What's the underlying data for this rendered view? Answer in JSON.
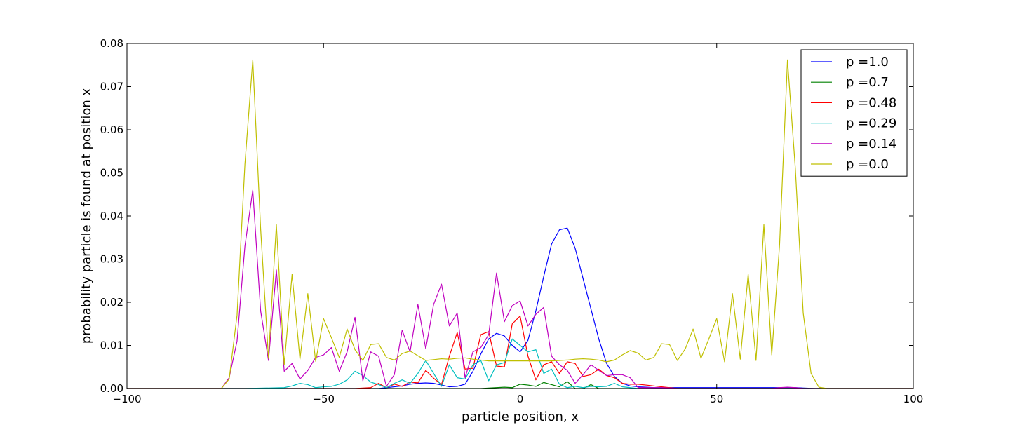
{
  "chart_data": {
    "type": "line",
    "title": "",
    "xlabel": "particle position, x",
    "ylabel": "probability particle is found at position x",
    "xlim": [
      -100,
      100
    ],
    "ylim": [
      0,
      0.08
    ],
    "xticks": [
      -100,
      -50,
      0,
      50,
      100
    ],
    "xtick_labels": [
      "−100",
      "−50",
      "0",
      "50",
      "100"
    ],
    "yticks": [
      0,
      0.01,
      0.02,
      0.03,
      0.04,
      0.05,
      0.06,
      0.07,
      0.08
    ],
    "ytick_labels": [
      "0.00",
      "0.01",
      "0.02",
      "0.03",
      "0.04",
      "0.05",
      "0.06",
      "0.07",
      "0.08"
    ],
    "grid": false,
    "legend_position": "top-right",
    "series": [
      {
        "name": "p =1.0",
        "color": "#0000ff",
        "x": [
          -100,
          -40,
          -36,
          -34,
          -32,
          -30,
          -28,
          -26,
          -24,
          -22,
          -20,
          -18,
          -16,
          -14,
          -12,
          -10,
          -8,
          -6,
          -4,
          -2,
          0,
          2,
          4,
          6,
          8,
          10,
          12,
          14,
          16,
          18,
          20,
          22,
          24,
          26,
          28,
          30,
          32,
          34,
          36,
          38,
          40,
          45,
          50,
          55,
          60,
          65,
          70,
          75,
          80,
          100
        ],
        "y": [
          0,
          0,
          0,
          0.0002,
          0.0004,
          0.0006,
          0.001,
          0.0012,
          0.0013,
          0.0012,
          0.0008,
          0.0004,
          0.0005,
          0.001,
          0.004,
          0.008,
          0.0115,
          0.0128,
          0.0122,
          0.01,
          0.0085,
          0.0112,
          0.018,
          0.026,
          0.0335,
          0.0368,
          0.0372,
          0.0325,
          0.0255,
          0.0185,
          0.0115,
          0.0058,
          0.0028,
          0.0012,
          0.0006,
          0.0004,
          0.0003,
          0.0002,
          0.0002,
          0.0002,
          0.0002,
          0.0002,
          0.0002,
          0.0002,
          0.0002,
          0.0002,
          0.0002,
          0,
          0,
          0
        ]
      },
      {
        "name": "p =0.7",
        "color": "#008000",
        "x": [
          -100,
          -30,
          -20,
          -10,
          -4,
          -2,
          0,
          2,
          4,
          6,
          8,
          10,
          12,
          14,
          16,
          18,
          20,
          22,
          24,
          30,
          100
        ],
        "y": [
          0,
          0,
          0,
          0,
          0.0003,
          0.0002,
          0.001,
          0.0008,
          0.0005,
          0.0014,
          0.0009,
          0.0004,
          0.0016,
          0,
          0,
          0.0009,
          0,
          0,
          0,
          0,
          0
        ]
      },
      {
        "name": "p =0.48",
        "color": "#ff0000",
        "x": [
          -100,
          -42,
          -38,
          -36,
          -34,
          -32,
          -30,
          -28,
          -26,
          -24,
          -22,
          -20,
          -18,
          -16,
          -14,
          -12,
          -10,
          -8,
          -6,
          -4,
          -2,
          0,
          2,
          4,
          6,
          8,
          10,
          12,
          14,
          16,
          18,
          20,
          22,
          24,
          26,
          28,
          30,
          32,
          34,
          36,
          40,
          100
        ],
        "y": [
          0,
          0,
          0.0002,
          0.0012,
          0.0002,
          0.001,
          0.0005,
          0.0015,
          0.0013,
          0.0042,
          0.0024,
          0.0009,
          0.0075,
          0.013,
          0.0045,
          0.0047,
          0.0125,
          0.0132,
          0.0052,
          0.005,
          0.015,
          0.0168,
          0.0075,
          0.002,
          0.0055,
          0.0062,
          0.0035,
          0.0062,
          0.0058,
          0.0028,
          0.0032,
          0.0045,
          0.003,
          0.0025,
          0.0012,
          0.001,
          0.001,
          0.0008,
          0.0006,
          0.0004,
          0,
          0
        ]
      },
      {
        "name": "p =0.29",
        "color": "#00bfbf",
        "x": [
          -100,
          -70,
          -60,
          -58,
          -56,
          -54,
          -52,
          -50,
          -48,
          -46,
          -44,
          -42,
          -40,
          -38,
          -36,
          -34,
          -32,
          -30,
          -28,
          -26,
          -24,
          -22,
          -20,
          -18,
          -16,
          -14,
          -12,
          -10,
          -8,
          -6,
          -4,
          -2,
          0,
          2,
          4,
          6,
          8,
          10,
          12,
          14,
          16,
          18,
          20,
          22,
          24,
          26,
          28,
          30,
          40,
          100
        ],
        "y": [
          0,
          0,
          0.0002,
          0.0006,
          0.0012,
          0.0009,
          0.0002,
          0.0004,
          0.0005,
          0.001,
          0.002,
          0.004,
          0.003,
          0.0015,
          0.0009,
          0.0002,
          0.0012,
          0.002,
          0.0012,
          0.0035,
          0.0065,
          0.0035,
          0.0005,
          0.0055,
          0.0025,
          0.0022,
          0.0055,
          0.0065,
          0.0018,
          0.0055,
          0.006,
          0.0115,
          0.01,
          0.0085,
          0.009,
          0.0035,
          0.0045,
          0.001,
          0.0002,
          0.0005,
          0.0002,
          0.0005,
          0.0004,
          0.0005,
          0.0012,
          0.0004,
          0.0002,
          0,
          0,
          0
        ]
      },
      {
        "name": "p =0.14",
        "color": "#bf00bf",
        "x": [
          -100,
          -76,
          -74,
          -72,
          -70,
          -68,
          -66,
          -64,
          -62,
          -60,
          -58,
          -56,
          -54,
          -52,
          -50,
          -48,
          -46,
          -44,
          -42,
          -40,
          -38,
          -36,
          -34,
          -32,
          -30,
          -28,
          -26,
          -24,
          -22,
          -20,
          -18,
          -16,
          -14,
          -12,
          -10,
          -8,
          -6,
          -4,
          -2,
          0,
          2,
          4,
          6,
          8,
          10,
          12,
          14,
          16,
          18,
          20,
          22,
          24,
          26,
          28,
          30,
          32,
          34,
          36,
          40,
          50,
          60,
          64,
          66,
          68,
          70,
          72,
          100
        ],
        "y": [
          0,
          0,
          0.0025,
          0.011,
          0.033,
          0.046,
          0.018,
          0.0065,
          0.0275,
          0.004,
          0.0058,
          0.0022,
          0.0042,
          0.0072,
          0.0078,
          0.0095,
          0.004,
          0.0085,
          0.0165,
          0.0018,
          0.0085,
          0.0075,
          0.0005,
          0.0032,
          0.0135,
          0.0085,
          0.0195,
          0.0092,
          0.0195,
          0.0242,
          0.0145,
          0.0175,
          0.0025,
          0.0085,
          0.0095,
          0.0125,
          0.0268,
          0.0155,
          0.0192,
          0.0203,
          0.0145,
          0.0172,
          0.0188,
          0.0075,
          0.0055,
          0.0042,
          0.0012,
          0.0032,
          0.0055,
          0.0042,
          0.003,
          0.0032,
          0.0032,
          0.0025,
          0.0002,
          0.0002,
          0.0002,
          0.0002,
          0,
          0,
          0,
          0,
          0.0002,
          0.0003,
          0.0002,
          0,
          0
        ]
      },
      {
        "name": "p =0.0",
        "color": "#bfbf00",
        "x": [
          -100,
          -76,
          -74,
          -72,
          -70,
          -68,
          -66,
          -64,
          -62,
          -60,
          -58,
          -56,
          -54,
          -52,
          -50,
          -48,
          -46,
          -44,
          -42,
          -40,
          -38,
          -36,
          -34,
          -32,
          -30,
          -28,
          -26,
          -24,
          -22,
          -20,
          -18,
          -16,
          -14,
          -12,
          -10,
          -8,
          -6,
          -4,
          -2,
          0,
          2,
          4,
          6,
          8,
          10,
          12,
          14,
          16,
          18,
          20,
          22,
          24,
          26,
          28,
          30,
          32,
          34,
          36,
          38,
          40,
          42,
          44,
          46,
          48,
          50,
          52,
          54,
          56,
          58,
          60,
          62,
          64,
          66,
          68,
          70,
          72,
          74,
          76,
          78,
          100
        ],
        "y": [
          0,
          0,
          0.0022,
          0.017,
          0.052,
          0.0762,
          0.037,
          0.007,
          0.038,
          0.0055,
          0.0265,
          0.0068,
          0.022,
          0.0063,
          0.0162,
          0.0118,
          0.0072,
          0.0138,
          0.009,
          0.0065,
          0.0102,
          0.0104,
          0.0072,
          0.0066,
          0.0081,
          0.0087,
          0.0076,
          0.0065,
          0.0067,
          0.0069,
          0.0068,
          0.007,
          0.0071,
          0.0068,
          0.0066,
          0.0064,
          0.0064,
          0.0064,
          0.0064,
          0.0064,
          0.0064,
          0.0064,
          0.0064,
          0.0064,
          0.0065,
          0.0066,
          0.0068,
          0.0069,
          0.0068,
          0.0066,
          0.0062,
          0.0066,
          0.0078,
          0.0088,
          0.0082,
          0.0066,
          0.0072,
          0.0104,
          0.0102,
          0.0065,
          0.0092,
          0.0138,
          0.007,
          0.0115,
          0.0162,
          0.0062,
          0.022,
          0.0068,
          0.0265,
          0.0065,
          0.038,
          0.0078,
          0.0335,
          0.0762,
          0.051,
          0.0175,
          0.0035,
          0.0003,
          0,
          0
        ]
      }
    ]
  }
}
